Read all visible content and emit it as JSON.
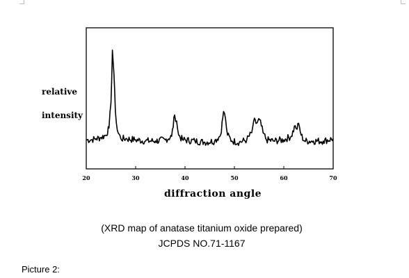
{
  "chart_data": {
    "type": "line",
    "title": "",
    "ylabel_line1": "relative",
    "ylabel_line2": "intensity",
    "xlabel": "diffraction angle",
    "xlim": [
      20,
      70
    ],
    "x_ticks": [
      20,
      30,
      40,
      50,
      60,
      70
    ],
    "x_tick_labels": [
      "20",
      "30",
      "40",
      "50",
      "60",
      "70"
    ],
    "ylim": [
      0,
      100
    ],
    "y_ticks_shown": false,
    "grid": false,
    "legend": "none",
    "line_color": "#000000",
    "series": [
      {
        "points": [
          [
            20.0,
            14
          ],
          [
            21.0,
            14
          ],
          [
            22.0,
            15
          ],
          [
            23.0,
            16
          ],
          [
            24.0,
            18
          ],
          [
            24.6,
            24
          ],
          [
            25.0,
            45
          ],
          [
            25.3,
            90
          ],
          [
            25.6,
            70
          ],
          [
            25.9,
            38
          ],
          [
            26.3,
            22
          ],
          [
            27.0,
            15
          ],
          [
            28.0,
            15
          ],
          [
            30.0,
            14
          ],
          [
            32.0,
            13
          ],
          [
            34.0,
            13
          ],
          [
            36.0,
            14
          ],
          [
            37.3,
            17
          ],
          [
            37.9,
            35
          ],
          [
            38.3,
            30
          ],
          [
            38.7,
            18
          ],
          [
            39.5,
            14
          ],
          [
            42.0,
            13
          ],
          [
            44.0,
            12
          ],
          [
            46.0,
            13
          ],
          [
            47.2,
            18
          ],
          [
            47.8,
            38
          ],
          [
            48.2,
            32
          ],
          [
            48.6,
            18
          ],
          [
            49.5,
            13
          ],
          [
            51.0,
            12
          ],
          [
            52.5,
            14
          ],
          [
            53.5,
            20
          ],
          [
            53.9,
            30
          ],
          [
            54.5,
            28
          ],
          [
            55.1,
            31
          ],
          [
            55.8,
            20
          ],
          [
            56.5,
            14
          ],
          [
            58.0,
            13
          ],
          [
            60.0,
            14
          ],
          [
            61.5,
            17
          ],
          [
            62.3,
            26
          ],
          [
            62.7,
            23
          ],
          [
            63.0,
            28
          ],
          [
            63.5,
            18
          ],
          [
            64.2,
            13
          ],
          [
            66.0,
            13
          ],
          [
            68.0,
            13
          ],
          [
            70.0,
            15
          ]
        ]
      }
    ]
  },
  "caption": {
    "line1": "(XRD map of anatase titanium oxide prepared)",
    "line2": "JCPDS NO.71-1167"
  },
  "picture_label": "Picture 2:"
}
